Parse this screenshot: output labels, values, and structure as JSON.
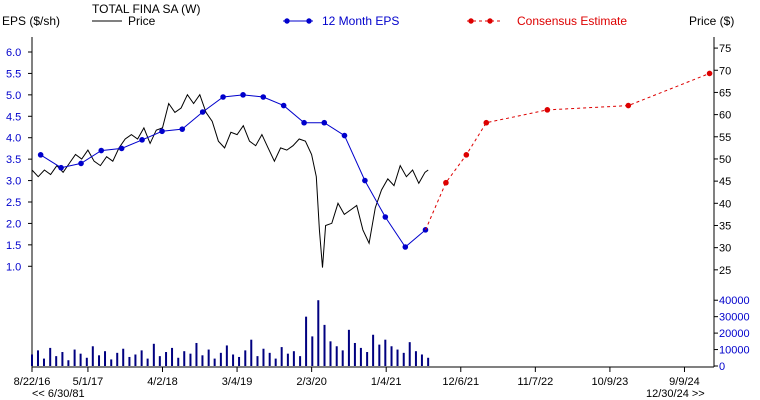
{
  "chart_data": {
    "type": "line",
    "company": "TOTAL FINA SA (W)",
    "legend": {
      "price_label": "Price",
      "eps_label": "12 Month EPS",
      "consensus_label": "Consensus Estimate"
    },
    "left_axis": {
      "label": "EPS ($/sh)",
      "ylim": [
        0.4,
        6.35
      ],
      "ticks": [
        "1.0",
        "1.5",
        "2.0",
        "2.5",
        "3.0",
        "3.5",
        "4.0",
        "4.5",
        "5.0",
        "5.5",
        "6.0"
      ],
      "color": "#0000cc"
    },
    "right_axis": {
      "label": "Price ($)",
      "ylim": [
        20,
        77.5
      ],
      "ticks": [
        "25",
        "30",
        "35",
        "40",
        "45",
        "50",
        "55",
        "60",
        "65",
        "70",
        "75"
      ]
    },
    "volume_axis": {
      "ylim": [
        0,
        45000
      ],
      "ticks": [
        "0",
        "10000",
        "20000",
        "30000",
        "40000"
      ]
    },
    "x_axis": {
      "start": "2016-08-22",
      "end": "2025-01-20",
      "tick_labels": [
        "8/22/16",
        "5/1/17",
        "4/2/18",
        "3/4/19",
        "2/3/20",
        "1/4/21",
        "12/6/21",
        "11/7/22",
        "10/9/23",
        "9/9/24"
      ],
      "tick_dates": [
        "2016-08-22",
        "2017-05-01",
        "2018-04-02",
        "2019-03-04",
        "2020-02-03",
        "2021-01-04",
        "2021-12-06",
        "2022-11-07",
        "2023-10-09",
        "2024-09-09"
      ],
      "left_note": "<< 6/30/81",
      "right_note": "12/30/24 >>"
    },
    "eps_series": {
      "name": "12 Month EPS",
      "color": "#0000cc",
      "points": [
        {
          "date": "2016-09-30",
          "value": 3.6
        },
        {
          "date": "2016-12-31",
          "value": 3.3
        },
        {
          "date": "2017-03-31",
          "value": 3.4
        },
        {
          "date": "2017-06-30",
          "value": 3.7
        },
        {
          "date": "2017-09-30",
          "value": 3.75
        },
        {
          "date": "2017-12-31",
          "value": 3.95
        },
        {
          "date": "2018-03-31",
          "value": 4.15
        },
        {
          "date": "2018-06-30",
          "value": 4.2
        },
        {
          "date": "2018-09-30",
          "value": 4.6
        },
        {
          "date": "2018-12-31",
          "value": 4.95
        },
        {
          "date": "2019-03-31",
          "value": 5.0
        },
        {
          "date": "2019-06-30",
          "value": 4.95
        },
        {
          "date": "2019-09-30",
          "value": 4.75
        },
        {
          "date": "2019-12-31",
          "value": 4.35
        },
        {
          "date": "2020-03-31",
          "value": 4.35
        },
        {
          "date": "2020-06-30",
          "value": 4.05
        },
        {
          "date": "2020-09-30",
          "value": 3.0
        },
        {
          "date": "2020-12-31",
          "value": 2.15
        },
        {
          "date": "2021-03-31",
          "value": 1.45
        },
        {
          "date": "2021-06-30",
          "value": 1.85
        }
      ]
    },
    "consensus_series": {
      "name": "Consensus Estimate",
      "color": "#dd0000",
      "points": [
        {
          "date": "2021-06-30",
          "value": 1.85
        },
        {
          "date": "2021-09-30",
          "value": 2.95
        },
        {
          "date": "2021-12-31",
          "value": 3.6
        },
        {
          "date": "2022-03-31",
          "value": 4.35
        },
        {
          "date": "2022-12-31",
          "value": 4.65
        },
        {
          "date": "2023-12-31",
          "value": 4.75
        },
        {
          "date": "2024-12-31",
          "value": 5.5
        }
      ]
    },
    "price_series": {
      "name": "Price",
      "color": "#000000",
      "points": [
        {
          "date": "2016-08-22",
          "value": 47.5
        },
        {
          "date": "2016-09-19",
          "value": 46
        },
        {
          "date": "2016-10-17",
          "value": 47.5
        },
        {
          "date": "2016-11-14",
          "value": 46.5
        },
        {
          "date": "2016-12-12",
          "value": 48.5
        },
        {
          "date": "2017-01-09",
          "value": 47
        },
        {
          "date": "2017-02-06",
          "value": 49
        },
        {
          "date": "2017-03-06",
          "value": 51
        },
        {
          "date": "2017-04-03",
          "value": 50
        },
        {
          "date": "2017-05-01",
          "value": 52
        },
        {
          "date": "2017-05-29",
          "value": 49.5
        },
        {
          "date": "2017-06-26",
          "value": 48.5
        },
        {
          "date": "2017-07-24",
          "value": 50.5
        },
        {
          "date": "2017-08-21",
          "value": 49.5
        },
        {
          "date": "2017-09-18",
          "value": 52.5
        },
        {
          "date": "2017-10-16",
          "value": 54.5
        },
        {
          "date": "2017-11-13",
          "value": 55.5
        },
        {
          "date": "2017-12-11",
          "value": 54.5
        },
        {
          "date": "2018-01-08",
          "value": 57
        },
        {
          "date": "2018-02-05",
          "value": 53.5
        },
        {
          "date": "2018-03-05",
          "value": 56.5
        },
        {
          "date": "2018-04-02",
          "value": 57
        },
        {
          "date": "2018-04-30",
          "value": 62.5
        },
        {
          "date": "2018-05-28",
          "value": 60.5
        },
        {
          "date": "2018-06-25",
          "value": 61.5
        },
        {
          "date": "2018-07-23",
          "value": 64.5
        },
        {
          "date": "2018-08-20",
          "value": 62.5
        },
        {
          "date": "2018-09-17",
          "value": 64.5
        },
        {
          "date": "2018-10-15",
          "value": 60.5
        },
        {
          "date": "2018-11-12",
          "value": 58.5
        },
        {
          "date": "2018-12-10",
          "value": 54
        },
        {
          "date": "2019-01-07",
          "value": 52.5
        },
        {
          "date": "2019-02-04",
          "value": 56
        },
        {
          "date": "2019-03-04",
          "value": 55.5
        },
        {
          "date": "2019-04-01",
          "value": 57.5
        },
        {
          "date": "2019-04-29",
          "value": 54
        },
        {
          "date": "2019-05-27",
          "value": 53
        },
        {
          "date": "2019-06-24",
          "value": 55.5
        },
        {
          "date": "2019-07-22",
          "value": 52.5
        },
        {
          "date": "2019-08-19",
          "value": 49.5
        },
        {
          "date": "2019-09-16",
          "value": 52.5
        },
        {
          "date": "2019-10-14",
          "value": 52
        },
        {
          "date": "2019-11-11",
          "value": 53
        },
        {
          "date": "2019-12-09",
          "value": 54.5
        },
        {
          "date": "2020-01-06",
          "value": 54
        },
        {
          "date": "2020-02-03",
          "value": 51
        },
        {
          "date": "2020-02-24",
          "value": 46
        },
        {
          "date": "2020-03-09",
          "value": 34
        },
        {
          "date": "2020-03-23",
          "value": 25.5
        },
        {
          "date": "2020-04-06",
          "value": 35
        },
        {
          "date": "2020-05-04",
          "value": 35.5
        },
        {
          "date": "2020-06-01",
          "value": 40
        },
        {
          "date": "2020-06-29",
          "value": 37.5
        },
        {
          "date": "2020-07-27",
          "value": 38.5
        },
        {
          "date": "2020-08-24",
          "value": 39.5
        },
        {
          "date": "2020-09-21",
          "value": 34
        },
        {
          "date": "2020-10-19",
          "value": 31
        },
        {
          "date": "2020-11-16",
          "value": 39
        },
        {
          "date": "2020-12-14",
          "value": 43
        },
        {
          "date": "2021-01-11",
          "value": 45.5
        },
        {
          "date": "2021-02-08",
          "value": 44
        },
        {
          "date": "2021-03-08",
          "value": 48.5
        },
        {
          "date": "2021-04-05",
          "value": 46
        },
        {
          "date": "2021-05-03",
          "value": 47.5
        },
        {
          "date": "2021-05-31",
          "value": 44.5
        },
        {
          "date": "2021-06-28",
          "value": 47
        },
        {
          "date": "2021-07-12",
          "value": 47.5
        }
      ]
    },
    "volume_series": {
      "name": "Volume",
      "color": "#000080",
      "values": [
        7000,
        9500,
        4500,
        11000,
        6000,
        8500,
        3500,
        10000,
        7500,
        5000,
        12000,
        6500,
        9000,
        4000,
        8000,
        10500,
        5500,
        7000,
        9500,
        4500,
        13500,
        6000,
        8500,
        11000,
        5000,
        9000,
        7500,
        14000,
        6500,
        10000,
        4500,
        8000,
        12500,
        7000,
        5500,
        9500,
        16000,
        6000,
        10500,
        8000,
        4500,
        11500,
        7500,
        9000,
        6000,
        30000,
        18000,
        40000,
        25000,
        15000,
        12000,
        9500,
        22000,
        14000,
        11000,
        8500,
        19000,
        13000,
        16000,
        12000,
        10000,
        8000,
        14500,
        9000,
        7000,
        5000
      ]
    }
  }
}
